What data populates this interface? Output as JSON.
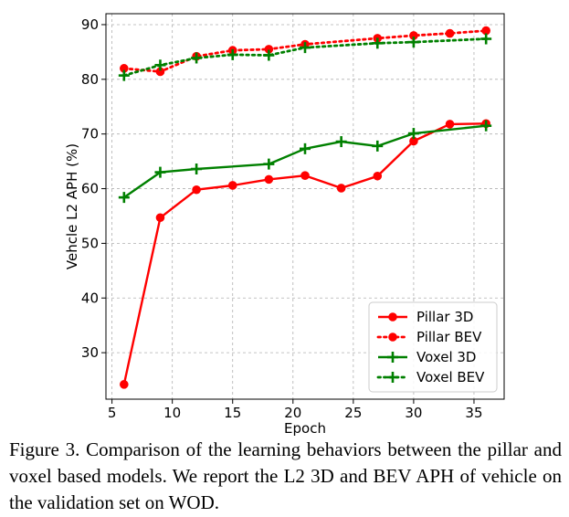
{
  "chart_data": {
    "type": "line",
    "title": "",
    "xlabel": "Epoch",
    "ylabel": "Vehcle L2 APH (%)",
    "xlim": [
      4.5,
      37.5
    ],
    "ylim": [
      21.5,
      92
    ],
    "xticks": [
      5,
      10,
      15,
      20,
      25,
      30,
      35
    ],
    "yticks": [
      30,
      40,
      50,
      60,
      70,
      80,
      90
    ],
    "grid": true,
    "legend_position": "lower-right",
    "series": [
      {
        "name": "Pillar 3D",
        "color": "#ff0000",
        "linestyle": "solid",
        "marker": "circle",
        "x": [
          6,
          9,
          12,
          15,
          18,
          21,
          24,
          27,
          30,
          33,
          36
        ],
        "y": [
          24.2,
          54.7,
          59.8,
          60.6,
          61.7,
          62.4,
          60.1,
          62.3,
          68.7,
          71.8,
          71.9
        ]
      },
      {
        "name": "Pillar BEV",
        "color": "#ff0000",
        "linestyle": "dotted",
        "marker": "circle",
        "x": [
          6,
          9,
          12,
          15,
          18,
          21,
          27,
          30,
          33,
          36
        ],
        "y": [
          82.0,
          81.4,
          84.2,
          85.3,
          85.5,
          86.4,
          87.5,
          88.0,
          88.4,
          88.9
        ]
      },
      {
        "name": "Voxel 3D",
        "color": "#008000",
        "linestyle": "solid",
        "marker": "plus",
        "x": [
          6,
          9,
          12,
          18,
          21,
          24,
          27,
          30,
          36
        ],
        "y": [
          58.4,
          63.0,
          63.6,
          64.5,
          67.3,
          68.6,
          67.8,
          70.1,
          71.5
        ]
      },
      {
        "name": "Voxel BEV",
        "color": "#008000",
        "linestyle": "dotted",
        "marker": "plus",
        "x": [
          6,
          9,
          12,
          15,
          18,
          21,
          27,
          30,
          36
        ],
        "y": [
          80.7,
          82.6,
          83.9,
          84.5,
          84.4,
          85.8,
          86.6,
          86.8,
          87.4
        ]
      }
    ]
  },
  "caption": "Figure 3. Comparison of the learning behaviors between the pillar and voxel based models. We report the L2 3D and BEV APH of vehicle on the validation set on WOD."
}
